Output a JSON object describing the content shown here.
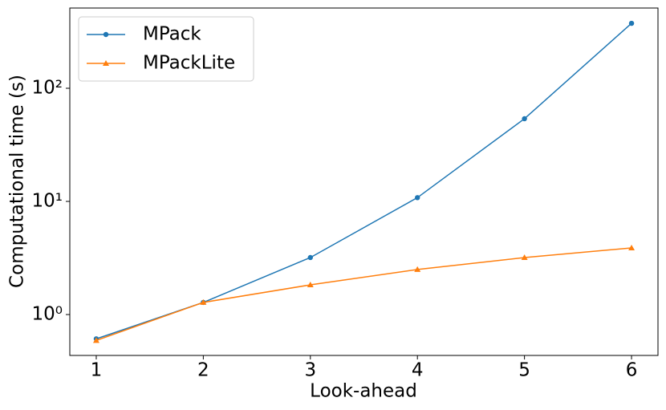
{
  "chart_data": {
    "type": "line",
    "xlabel": "Look-ahead",
    "ylabel": "Computational time (s)",
    "x": [
      1,
      2,
      3,
      4,
      5,
      6
    ],
    "series": [
      {
        "name": "MPack",
        "color": "#1f77b4",
        "marker": "circle",
        "values": [
          0.61,
          1.28,
          3.19,
          10.8,
          53.8,
          375
        ]
      },
      {
        "name": "MPackLite",
        "color": "#ff7f0e",
        "marker": "triangle",
        "values": [
          0.59,
          1.28,
          1.83,
          2.5,
          3.19,
          3.88
        ]
      }
    ],
    "xlim": [
      0.753,
      6.247
    ],
    "xticks": [
      1,
      2,
      3,
      4,
      5,
      6
    ],
    "ylim": [
      0.435,
      512
    ],
    "log_y": true,
    "yticks": [
      {
        "value": 1,
        "label": "10⁰"
      },
      {
        "value": 10,
        "label": "10¹"
      },
      {
        "value": 100,
        "label": "10²"
      }
    ],
    "legend": "upper left",
    "grid": false
  }
}
